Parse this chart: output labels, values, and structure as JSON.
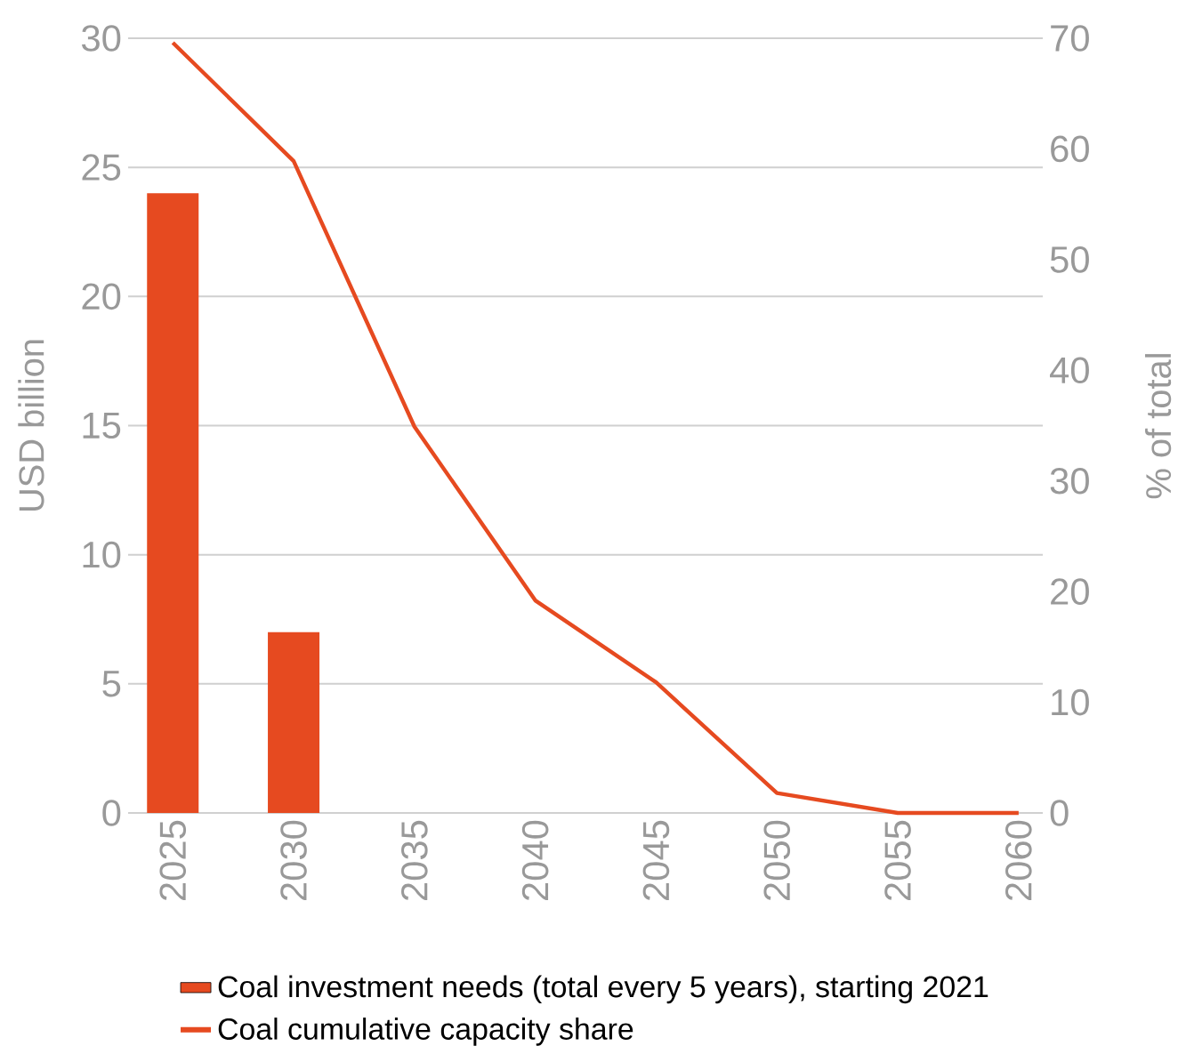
{
  "chart_data": {
    "type": "bar",
    "categories": [
      "2025",
      "2030",
      "2035",
      "2040",
      "2045",
      "2050",
      "2055",
      "2060"
    ],
    "ylabel": "USD billion",
    "y2label": "% of total",
    "ylim": [
      0,
      30
    ],
    "yticks": [
      0,
      5,
      10,
      15,
      20,
      25,
      30
    ],
    "y2lim": [
      0,
      70
    ],
    "y2ticks": [
      0,
      10,
      20,
      30,
      40,
      50,
      60,
      70
    ],
    "grid": "y",
    "legend": "bottom",
    "series": [
      {
        "name": "Coal investment needs (total every 5 years), starting 2021",
        "color": "#e64a20",
        "values": [
          24,
          7,
          null,
          null,
          null,
          null,
          null,
          null
        ]
      },
      {
        "name": "Coal cumulative capacity share",
        "type": "line",
        "axis": "y2",
        "color": "#e64a20",
        "values": [
          69.6,
          58.9,
          34.9,
          19.2,
          11.8,
          1.8,
          0,
          0
        ]
      }
    ]
  }
}
